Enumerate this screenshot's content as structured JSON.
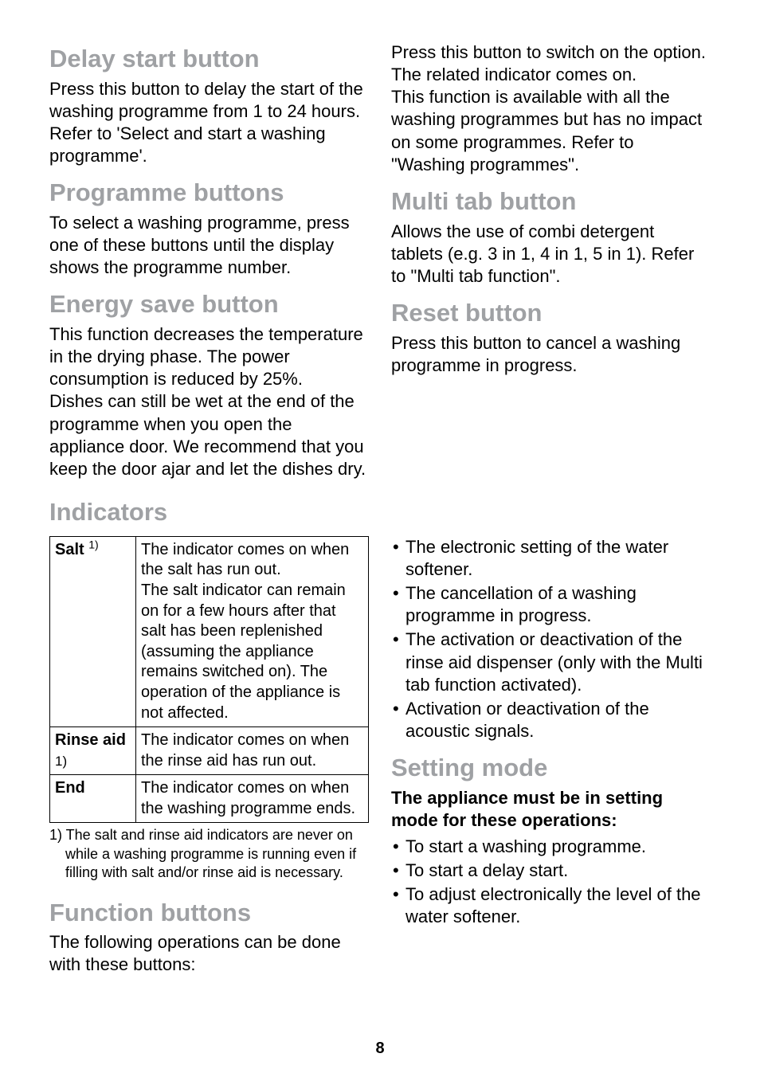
{
  "colors": {
    "heading": "#9fa1a4",
    "text": "#000000"
  },
  "typography": {
    "heading_fontsize": "31px",
    "heading_lineheight": "1.15",
    "body_fontsize": "22px",
    "body_lineheight": "1.28"
  },
  "top": {
    "left": {
      "h1": "Delay start button",
      "p1": "Press this button to delay the start of the washing programme from 1 to 24 hours. Refer to 'Select and start a washing programme'.",
      "h2": "Programme buttons",
      "p2": "To select a washing programme, press one of these buttons until the display shows the programme number.",
      "h3": "Energy save button",
      "p3a": "This function decreases the temperature in the drying phase. The power consumption is reduced by 25%.",
      "p3b": "Dishes can still be wet at the end of the programme when you open the appliance door. We recommend that you keep the door ajar and let the dishes dry."
    },
    "right": {
      "p0": "Press this button to switch on the option. The related indicator comes on.",
      "p0b": "This function is available with all the washing programmes but has no impact on some programmes. Refer to \"Washing programmes\".",
      "h1": "Multi tab button",
      "p1": "Allows the use of combi detergent tablets (e.g. 3 in 1, 4 in 1, 5 in 1). Refer to \"Multi tab function\".",
      "h2": "Reset button",
      "p2": "Press this button to cancel a washing programme in progress."
    }
  },
  "indicators_heading": "Indicators",
  "table": {
    "rows": [
      {
        "label": "Salt",
        "sup": "1)",
        "desc": "The indicator comes on when the salt has run out.\nThe salt indicator can remain on for a few hours after that salt has been replenished (assuming the appliance remains switched on). The operation of the appliance is not affected."
      },
      {
        "label": "Rinse aid",
        "sup": "1)",
        "sup_below": true,
        "desc": "The indicator comes on when the rinse aid has run out."
      },
      {
        "label": "End",
        "desc": "The indicator comes on when the washing programme ends."
      }
    ]
  },
  "footnote": "1) The salt and rinse aid indicators are never on while a washing programme is running even if filling with salt and/or rinse aid is necessary.",
  "bottom": {
    "left": {
      "h1": "Function buttons",
      "p1": "The following operations can be done with these buttons:"
    },
    "right": {
      "bullets_a": [
        "The electronic setting of the water softener.",
        "The cancellation of a washing programme in progress.",
        "The activation or deactivation of the rinse aid dispenser (only with the Multi tab function activated).",
        "Activation or deactivation of the acoustic signals."
      ],
      "h1": "Setting mode",
      "sub": "The appliance must be in setting mode for these operations:",
      "bullets_b": [
        "To start a washing programme.",
        "To start a delay start.",
        "To adjust electronically the level of the water softener."
      ]
    }
  },
  "page_number": "8"
}
